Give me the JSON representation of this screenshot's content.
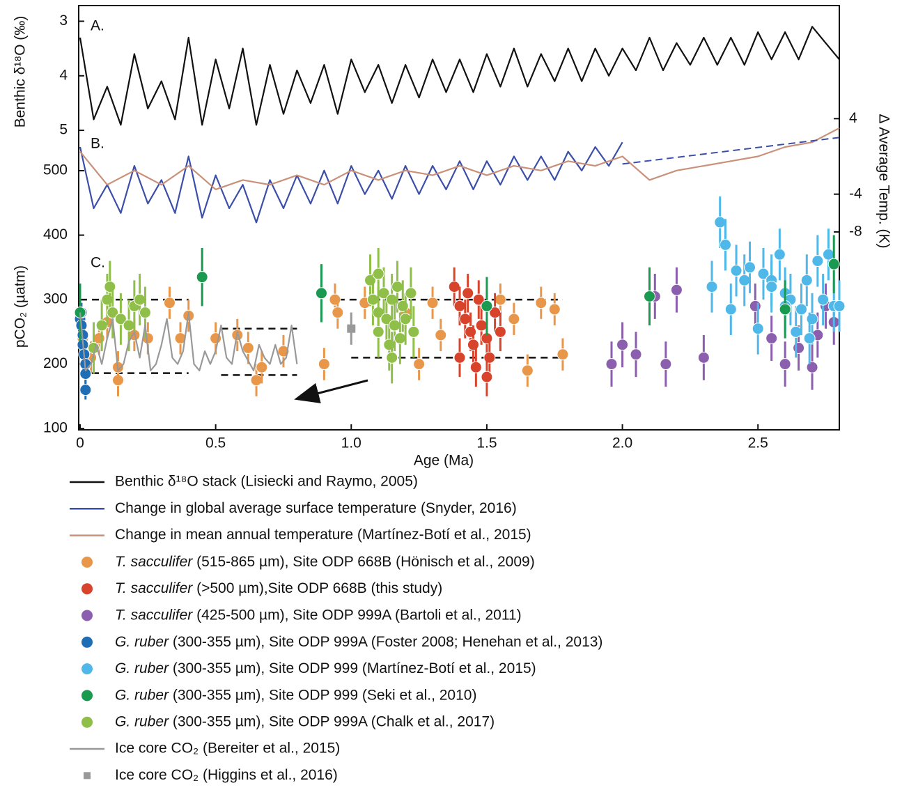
{
  "chart_data": [
    {
      "type": "line",
      "panel_label": "A.",
      "y_label": "Benthic δ¹⁸O (‰)",
      "y_axis_side": "left",
      "ylim": [
        5.05,
        2.7
      ],
      "yticks": [
        3,
        4,
        5
      ],
      "xlim": [
        0,
        2.8
      ],
      "series": [
        {
          "name": "Benthic δ¹⁸O stack (Lisiecki and Raymo, 2005)",
          "color": "#111111",
          "x": [
            0,
            0.05,
            0.1,
            0.15,
            0.2,
            0.25,
            0.3,
            0.35,
            0.4,
            0.45,
            0.5,
            0.55,
            0.6,
            0.65,
            0.7,
            0.75,
            0.8,
            0.85,
            0.9,
            0.95,
            1.0,
            1.05,
            1.1,
            1.15,
            1.2,
            1.25,
            1.3,
            1.35,
            1.4,
            1.45,
            1.5,
            1.55,
            1.6,
            1.65,
            1.7,
            1.75,
            1.8,
            1.85,
            1.9,
            1.95,
            2.0,
            2.05,
            2.1,
            2.15,
            2.2,
            2.25,
            2.3,
            2.35,
            2.4,
            2.45,
            2.5,
            2.55,
            2.6,
            2.65,
            2.7,
            2.75,
            2.8
          ],
          "values": [
            3.3,
            4.8,
            4.2,
            4.9,
            3.6,
            4.6,
            4.1,
            4.8,
            3.3,
            4.9,
            3.7,
            4.6,
            3.5,
            4.9,
            3.8,
            4.7,
            3.9,
            4.5,
            3.8,
            4.7,
            3.7,
            4.3,
            3.8,
            4.5,
            3.8,
            4.4,
            3.7,
            4.3,
            3.7,
            4.3,
            3.6,
            4.2,
            3.5,
            4.2,
            3.6,
            4.1,
            3.5,
            4.1,
            3.5,
            4.0,
            3.5,
            3.9,
            3.3,
            3.9,
            3.4,
            3.8,
            3.3,
            3.8,
            3.3,
            3.8,
            3.2,
            3.7,
            3.2,
            3.7,
            3.1,
            3.4,
            3.7
          ]
        }
      ]
    },
    {
      "type": "line",
      "panel_label": "B.",
      "y_label": "Δ Average Temp. (K)",
      "y_axis_side": "right",
      "ylim": [
        -10,
        5.5
      ],
      "yticks": [
        4,
        -4,
        -8
      ],
      "xlim": [
        0,
        2.8
      ],
      "series": [
        {
          "name": "Change in global average surface temperature (Snyder, 2016)",
          "color": "#3b4ea8",
          "x": [
            0,
            0.05,
            0.1,
            0.15,
            0.2,
            0.25,
            0.3,
            0.35,
            0.4,
            0.45,
            0.5,
            0.55,
            0.6,
            0.65,
            0.7,
            0.75,
            0.8,
            0.85,
            0.9,
            0.95,
            1.0,
            1.05,
            1.1,
            1.15,
            1.2,
            1.25,
            1.3,
            1.35,
            1.4,
            1.45,
            1.5,
            1.55,
            1.6,
            1.65,
            1.7,
            1.75,
            1.8,
            1.85,
            1.9,
            1.95,
            2.0
          ],
          "values": [
            1,
            -5.5,
            -3,
            -6,
            -1,
            -5,
            -2.5,
            -6,
            0,
            -6.5,
            -2,
            -5.5,
            -3,
            -7,
            -2.5,
            -5.5,
            -2,
            -5,
            -1.5,
            -5,
            -1,
            -4,
            -1.5,
            -4.5,
            -1,
            -4,
            -1,
            -3.5,
            -0.5,
            -3.5,
            -0.5,
            -3,
            0,
            -2.5,
            0,
            -2.5,
            0.5,
            -1.5,
            1,
            -1,
            1.5
          ]
        },
        {
          "name": "Change in mean annual temperature (Martínez-Botí et al., 2015)",
          "color": "#c9907a",
          "x": [
            0,
            0.1,
            0.2,
            0.3,
            0.4,
            0.5,
            0.6,
            0.7,
            0.8,
            0.9,
            1.0,
            1.1,
            1.2,
            1.3,
            1.4,
            1.5,
            1.6,
            1.7,
            1.8,
            1.9,
            2.0,
            2.1,
            2.2,
            2.3,
            2.4,
            2.5,
            2.6,
            2.7,
            2.8
          ],
          "values": [
            0.5,
            -3,
            -1.5,
            -3,
            -1,
            -3.5,
            -2.5,
            -3,
            -2,
            -3,
            -1.5,
            -2.5,
            -1.5,
            -2,
            -1,
            -2,
            -1,
            -1.5,
            -0.5,
            -1,
            0,
            -2.5,
            -1.5,
            -1,
            -0.5,
            0,
            1,
            1.5,
            3
          ]
        }
      ],
      "trend_line": {
        "color": "#3b4ea8",
        "x": [
          2.0,
          2.8
        ],
        "values": [
          -0.8,
          2
        ]
      }
    },
    {
      "type": "scatter",
      "panel_label": "C.",
      "y_label": "pCO₂ (µatm)",
      "y_axis_side": "left",
      "x_label": "Age (Ma)",
      "ylim": [
        98,
        500
      ],
      "yticks": [
        100,
        200,
        300,
        400,
        500
      ],
      "xlim": [
        0,
        2.8
      ],
      "xticks": [
        0,
        0.5,
        {
          "value": 1,
          "label": "1.0"
        },
        1.5,
        {
          "value": 2,
          "label": "2.0"
        },
        2.5
      ],
      "reference_lines": [
        {
          "x": [
            0,
            0.4
          ],
          "value": 300
        },
        {
          "x": [
            0,
            0.4
          ],
          "value": 186
        },
        {
          "x": [
            0.52,
            0.8
          ],
          "value": 255
        },
        {
          "x": [
            0.52,
            0.8
          ],
          "value": 183
        },
        {
          "x": [
            0.95,
            1.78
          ],
          "value": 300
        },
        {
          "x": [
            1.0,
            1.78
          ],
          "value": 210
        }
      ],
      "series": [
        {
          "name": "T. sacculifer (515-865 µm), Site ODP 668B (Hönisch et al., 2009)",
          "color": "#e8974a",
          "marker": "circle",
          "italic_species": true,
          "x": [
            0.01,
            0.04,
            0.07,
            0.1,
            0.14,
            0.14,
            0.2,
            0.25,
            0.33,
            0.37,
            0.4,
            0.5,
            0.58,
            0.62,
            0.65,
            0.67,
            0.75,
            0.9,
            0.94,
            0.95,
            1.05,
            1.2,
            1.25,
            1.3,
            1.33,
            1.55,
            1.6,
            1.65,
            1.7,
            1.75,
            1.78
          ],
          "values": [
            240,
            210,
            240,
            265,
            175,
            195,
            245,
            240,
            295,
            240,
            275,
            240,
            245,
            225,
            175,
            195,
            220,
            200,
            300,
            280,
            295,
            280,
            200,
            295,
            245,
            300,
            270,
            190,
            295,
            285,
            215
          ],
          "errors": [
            25,
            25,
            25,
            25,
            25,
            25,
            25,
            25,
            25,
            25,
            25,
            25,
            25,
            25,
            25,
            25,
            25,
            25,
            25,
            25,
            25,
            25,
            25,
            25,
            25,
            25,
            25,
            25,
            25,
            25,
            25
          ]
        },
        {
          "name": "T. sacculifer (>500 µm),Site ODP 668B (this study)",
          "color": "#d8432b",
          "marker": "circle",
          "italic_species": true,
          "x": [
            1.38,
            1.4,
            1.42,
            1.44,
            1.45,
            1.47,
            1.48,
            1.5,
            1.51,
            1.53,
            1.55,
            1.4,
            1.5,
            1.43,
            1.46
          ],
          "values": [
            320,
            290,
            270,
            250,
            230,
            300,
            260,
            240,
            210,
            280,
            250,
            210,
            180,
            310,
            195
          ],
          "errors": [
            30,
            30,
            30,
            30,
            30,
            30,
            30,
            30,
            30,
            30,
            30,
            30,
            30,
            30,
            30
          ]
        },
        {
          "name": "T. sacculifer (425-500 µm), Site ODP 999A (Bartoli et al., 2011)",
          "color": "#8b5fad",
          "marker": "circle",
          "italic_species": true,
          "x": [
            1.96,
            2.0,
            2.05,
            2.12,
            2.16,
            2.2,
            2.3,
            2.49,
            2.55,
            2.6,
            2.65,
            2.7,
            2.72,
            2.75,
            2.78
          ],
          "values": [
            200,
            230,
            215,
            305,
            200,
            315,
            210,
            290,
            240,
            200,
            225,
            195,
            245,
            290,
            265
          ],
          "errors": [
            35,
            35,
            35,
            35,
            35,
            35,
            35,
            35,
            35,
            35,
            35,
            35,
            35,
            35,
            35
          ]
        },
        {
          "name": "G. ruber (300-355 µm), Site ODP 999A (Foster 2008; Henehan et al., 2013)",
          "color": "#1e6db5",
          "marker": "circle",
          "italic_species": true,
          "x": [
            0,
            0.005,
            0.01,
            0.01,
            0.015,
            0.02,
            0.02,
            0.02,
            0.005
          ],
          "values": [
            270,
            260,
            245,
            230,
            215,
            200,
            185,
            160,
            280
          ],
          "errors": [
            15,
            15,
            15,
            15,
            15,
            15,
            15,
            15,
            15
          ]
        },
        {
          "name": "G. ruber (300-355 µm), Site ODP 999 (Martínez-Botí et al., 2015)",
          "color": "#4fb8e8",
          "marker": "circle",
          "italic_species": true,
          "x": [
            2.33,
            2.36,
            2.38,
            2.4,
            2.42,
            2.45,
            2.47,
            2.5,
            2.52,
            2.55,
            2.58,
            2.6,
            2.62,
            2.64,
            2.66,
            2.68,
            2.7,
            2.72,
            2.74,
            2.76,
            2.78,
            2.8,
            2.69,
            2.6,
            2.55
          ],
          "values": [
            320,
            420,
            385,
            285,
            345,
            330,
            350,
            255,
            340,
            330,
            370,
            310,
            300,
            250,
            285,
            330,
            270,
            360,
            300,
            370,
            290,
            290,
            240,
            290,
            320
          ],
          "errors": [
            40,
            40,
            40,
            40,
            40,
            40,
            40,
            40,
            40,
            40,
            40,
            40,
            40,
            40,
            40,
            40,
            40,
            40,
            40,
            40,
            40,
            40,
            40,
            40,
            40
          ]
        },
        {
          "name": "G. ruber (300-355 µm), Site ODP 999 (Seki et al., 2010)",
          "color": "#1a9a50",
          "marker": "circle",
          "italic_species": true,
          "x": [
            0,
            0.45,
            0.89,
            1.5,
            2.1,
            2.6,
            2.78
          ],
          "values": [
            280,
            335,
            310,
            290,
            305,
            285,
            355
          ],
          "errors": [
            45,
            45,
            45,
            45,
            45,
            45,
            45
          ]
        },
        {
          "name": "G. ruber (300-355 µm), Site ODP 999A (Chalk et al., 2017)",
          "color": "#8fbf48",
          "marker": "circle",
          "italic_species": true,
          "x": [
            0.05,
            0.08,
            0.1,
            0.11,
            0.12,
            0.15,
            0.18,
            0.2,
            0.22,
            0.24,
            1.07,
            1.08,
            1.1,
            1.1,
            1.12,
            1.13,
            1.14,
            1.15,
            1.16,
            1.17,
            1.18,
            1.19,
            1.2,
            1.22,
            1.23,
            1.1,
            1.15
          ],
          "values": [
            225,
            260,
            300,
            320,
            280,
            270,
            260,
            290,
            300,
            280,
            330,
            300,
            280,
            250,
            310,
            270,
            230,
            300,
            260,
            320,
            240,
            290,
            270,
            310,
            250,
            340,
            210
          ],
          "errors": [
            40,
            40,
            40,
            40,
            40,
            40,
            40,
            40,
            40,
            40,
            40,
            40,
            40,
            40,
            40,
            40,
            40,
            40,
            40,
            40,
            40,
            40,
            40,
            40,
            40,
            40,
            40
          ]
        },
        {
          "name": "Ice core CO₂ (Bereiter et al., 2015)",
          "color": "#999999",
          "marker": "line",
          "x": [
            0,
            0.02,
            0.04,
            0.06,
            0.08,
            0.1,
            0.12,
            0.14,
            0.16,
            0.18,
            0.2,
            0.22,
            0.24,
            0.26,
            0.28,
            0.3,
            0.32,
            0.34,
            0.36,
            0.38,
            0.4,
            0.42,
            0.44,
            0.46,
            0.48,
            0.5,
            0.52,
            0.54,
            0.56,
            0.58,
            0.6,
            0.62,
            0.64,
            0.66,
            0.68,
            0.7,
            0.72,
            0.74,
            0.76,
            0.78,
            0.8
          ],
          "values": [
            280,
            190,
            200,
            230,
            200,
            240,
            270,
            190,
            200,
            235,
            250,
            210,
            260,
            190,
            200,
            230,
            270,
            210,
            200,
            220,
            280,
            200,
            190,
            220,
            200,
            220,
            260,
            210,
            200,
            250,
            220,
            205,
            190,
            230,
            210,
            200,
            230,
            200,
            210,
            260,
            200
          ]
        },
        {
          "name": "Ice core CO₂ (Higgins et al., 2016)",
          "color": "#999999",
          "marker": "square",
          "x": [
            1.0
          ],
          "values": [
            255
          ],
          "errors": [
            25
          ]
        }
      ]
    }
  ]
}
